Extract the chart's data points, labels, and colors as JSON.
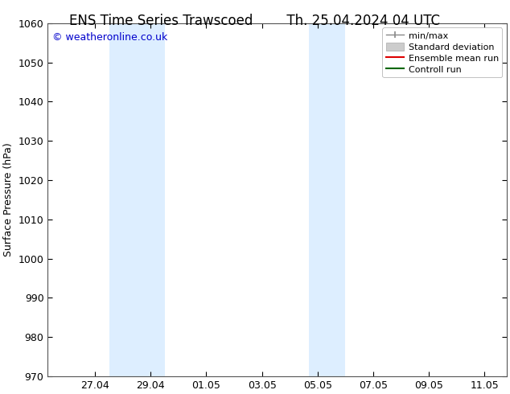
{
  "title_left": "ENS Time Series Trawscoed",
  "title_right": "Th. 25.04.2024 04 UTC",
  "ylabel": "Surface Pressure (hPa)",
  "ylim": [
    970,
    1060
  ],
  "yticks": [
    970,
    980,
    990,
    1000,
    1010,
    1020,
    1030,
    1040,
    1050,
    1060
  ],
  "xtick_labels": [
    "27.04",
    "29.04",
    "01.05",
    "03.05",
    "05.05",
    "07.05",
    "09.05",
    "11.05"
  ],
  "band1_start": 27.5,
  "band1_end": 29.5,
  "band2_start": 34.7,
  "band2_end": 36.0,
  "band_color": "#ddeeff",
  "xlim_start": 25.3,
  "xlim_end": 41.8,
  "copyright_text": "© weatheronline.co.uk",
  "copyright_color": "#0000cc",
  "bg_color": "#ffffff",
  "plot_bg_color": "#ffffff",
  "title_fontsize": 12,
  "label_fontsize": 9,
  "tick_fontsize": 9,
  "legend_fontsize": 8
}
